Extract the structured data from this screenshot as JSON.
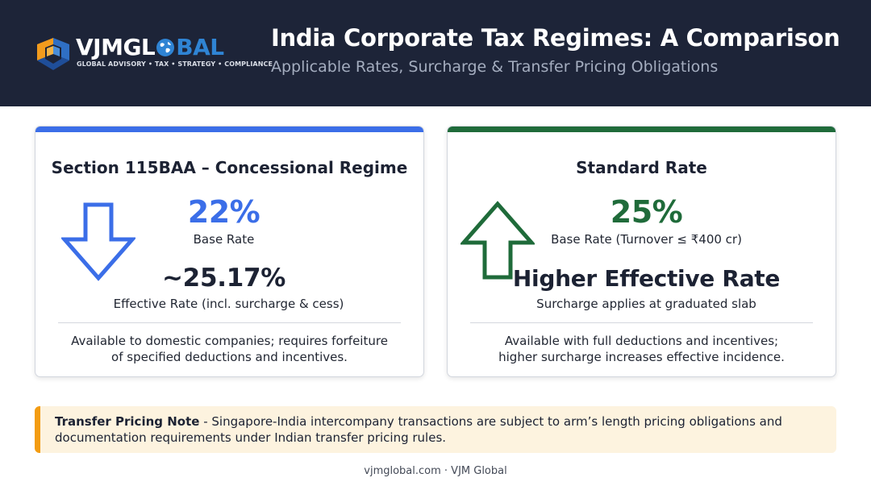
{
  "brand": {
    "name_part1": "VJMGL",
    "name_part2": "BAL",
    "tagline": "GLOBAL ADVISORY • TAX • STRATEGY • COMPLIANCE",
    "logo_icon": "cube-logo-icon",
    "globe_icon": "globe-icon"
  },
  "header": {
    "title": "India Corporate Tax Regimes: A Comparison",
    "subtitle": "Applicable Rates, Surcharge & Transfer Pricing Obligations"
  },
  "regimes": {
    "concessional": {
      "title": "Section 115BAA – Concessional Regime",
      "rate": "22%",
      "rate_label": "Base Rate",
      "effective": "~25.17%",
      "effective_label": "Effective Rate (incl. surcharge & cess)",
      "note_line1": "Available to domestic companies; requires forfeiture",
      "note_line2": "of specified deductions and incentives.",
      "icon": "arrow-down-icon",
      "accent_color": "#3b6ee8"
    },
    "standard": {
      "title": "Standard Rate",
      "rate": "25%",
      "rate_label": "Base Rate (Turnover ≤ ₹400 cr)",
      "effective": "Higher Effective Rate",
      "effective_label": "Surcharge applies at graduated slab",
      "note_line1": "Available with full deductions and incentives;",
      "note_line2": "higher surcharge increases effective incidence.",
      "icon": "arrow-up-icon",
      "accent_color": "#1f6b3a"
    }
  },
  "transfer_pricing": {
    "heading": "Transfer Pricing Note",
    "body": " - Singapore-India intercompany transactions are subject to arm’s length pricing obligations and documentation requirements under Indian transfer pricing rules.",
    "accent_color": "#f39c12"
  },
  "footer": {
    "text": "vjmglobal.com · VJM Global"
  }
}
